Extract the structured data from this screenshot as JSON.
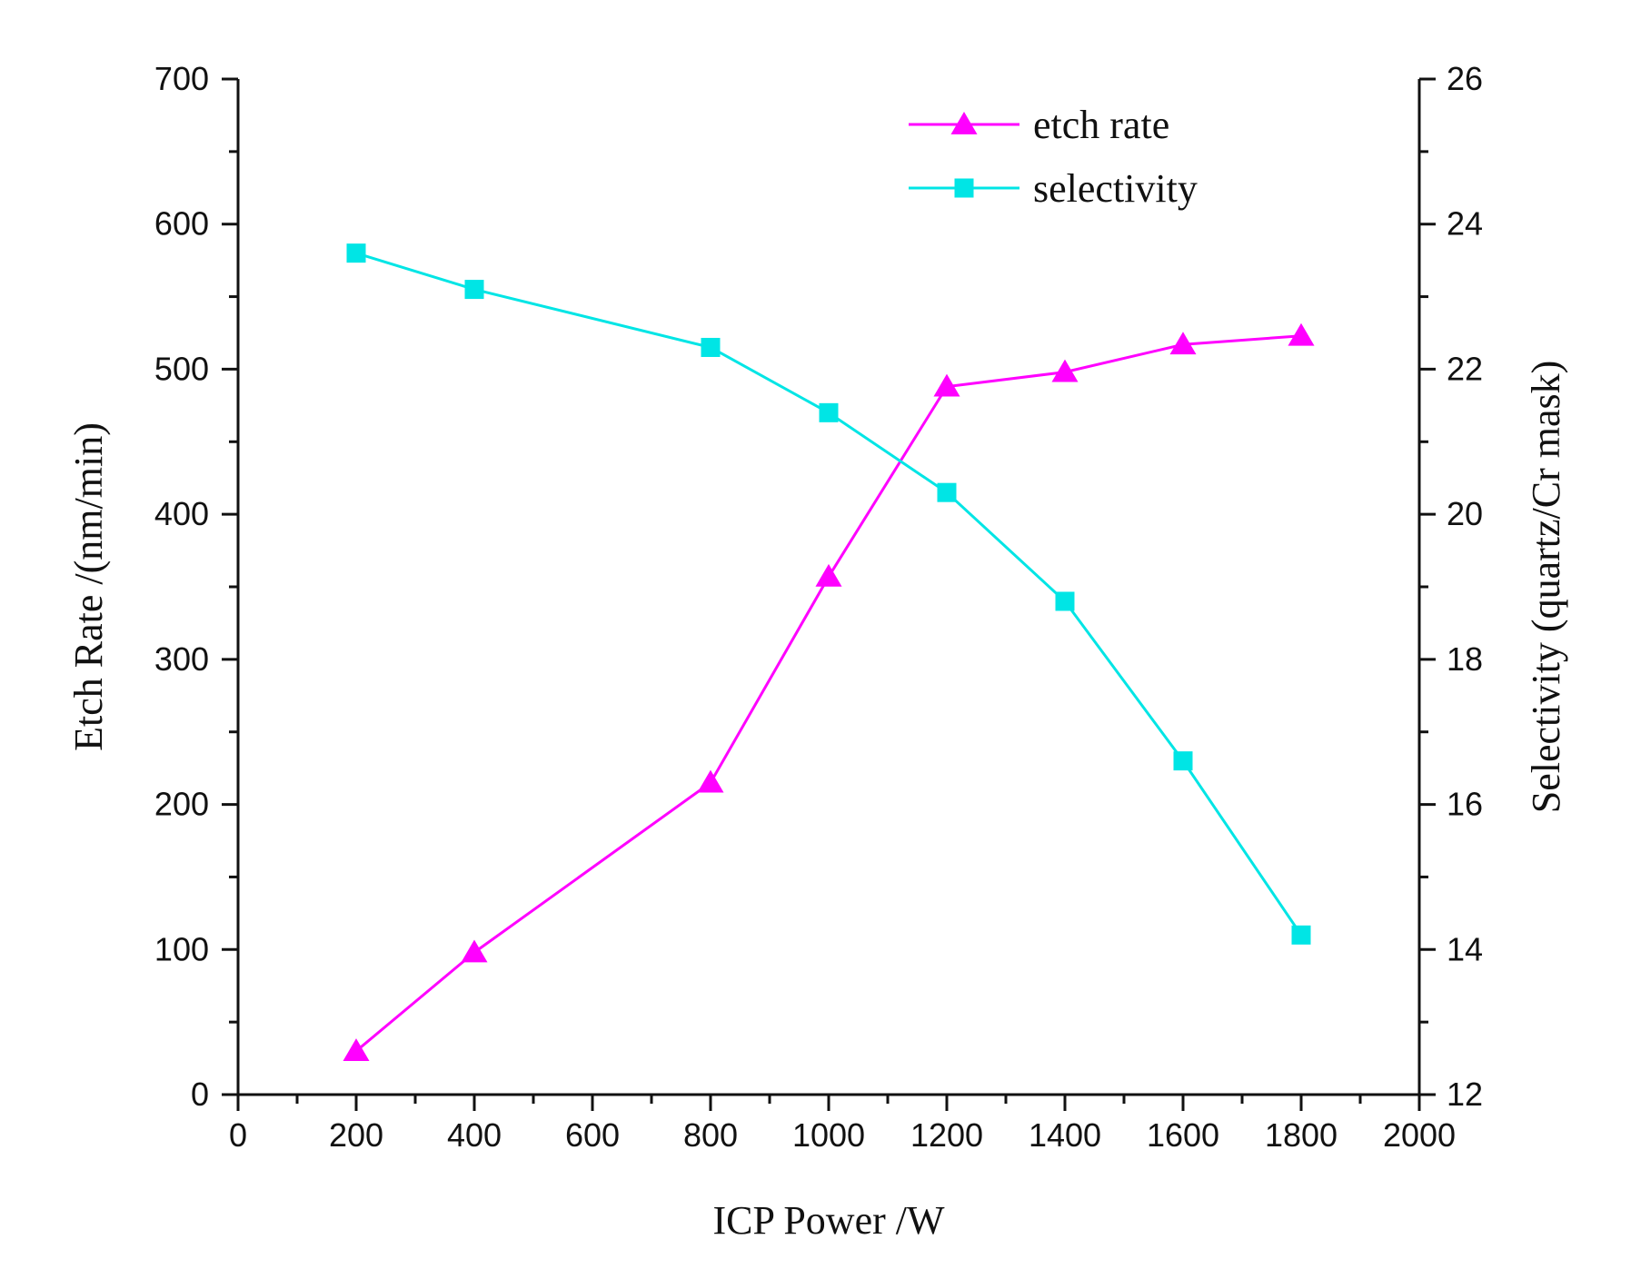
{
  "chart_data": {
    "type": "line",
    "title": "",
    "xlabel": "ICP Power /W",
    "ylabel_left": "Etch Rate /(nm/min)",
    "ylabel_right": "Selectivity (quartz/Cr mask)",
    "xlim": [
      0,
      2000
    ],
    "ylim_left": [
      0,
      700
    ],
    "ylim_right": [
      12,
      26
    ],
    "x_ticks": [
      0,
      200,
      400,
      600,
      800,
      1000,
      1200,
      1400,
      1600,
      1800,
      2000
    ],
    "x_tick_labels": [
      "0",
      "200",
      "400",
      "600",
      "800",
      "1000",
      "1200",
      "1400",
      "1600",
      "1800",
      "2000"
    ],
    "y_left_ticks": [
      0,
      100,
      200,
      300,
      400,
      500,
      600,
      700
    ],
    "y_left_tick_labels": [
      "0",
      "100",
      "200",
      "300",
      "400",
      "500",
      "600",
      "700"
    ],
    "y_right_ticks": [
      12,
      14,
      16,
      18,
      20,
      22,
      24,
      26
    ],
    "y_right_tick_labels": [
      "12",
      "14",
      "16",
      "18",
      "20",
      "22",
      "24",
      "26"
    ],
    "grid": false,
    "legend_position": "top-right",
    "series": [
      {
        "name": "etch rate",
        "axis": "left",
        "marker": "triangle",
        "color": "#ff00ff",
        "x": [
          200,
          400,
          800,
          1000,
          1200,
          1400,
          1600,
          1800
        ],
        "y": [
          30,
          98,
          215,
          357,
          488,
          498,
          517,
          523
        ]
      },
      {
        "name": "selectivity",
        "axis": "right",
        "marker": "square",
        "color": "#00e5e5",
        "x": [
          200,
          400,
          800,
          1000,
          1200,
          1400,
          1600,
          1800
        ],
        "y": [
          23.6,
          23.1,
          22.3,
          21.4,
          20.3,
          18.8,
          16.6,
          14.2
        ]
      }
    ]
  }
}
